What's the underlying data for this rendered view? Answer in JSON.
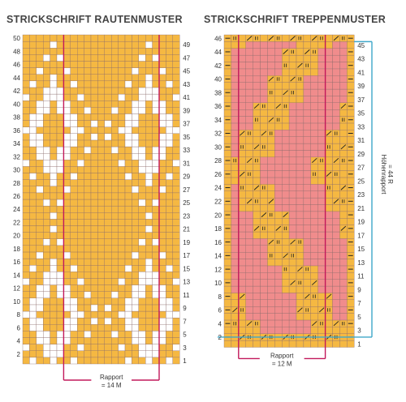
{
  "left_chart": {
    "title": "STRICKSCHRIFT RAUTENMUSTER",
    "rows": 50,
    "left_labels": [
      "2",
      "4",
      "6",
      "8",
      "10",
      "12",
      "14",
      "16",
      "18",
      "20",
      "22",
      "24",
      "26",
      "28",
      "30",
      "32",
      "34",
      "36",
      "38",
      "40",
      "42",
      "44",
      "46",
      "48",
      "50"
    ],
    "right_labels": [
      "1",
      "3",
      "5",
      "7",
      "9",
      "11",
      "13",
      "15",
      "17",
      "19",
      "21",
      "23",
      "25",
      "27",
      "29",
      "31",
      "33",
      "35",
      "37",
      "39",
      "41",
      "43",
      "45",
      "47",
      "49"
    ],
    "rapport_label_1": "Rapport",
    "rapport_label_2": "= 14 M"
  },
  "right_chart": {
    "title": "STRICKSCHRIFT TREPPENMUSTER",
    "rows": 46,
    "left_labels": [
      "2",
      "4",
      "6",
      "8",
      "10",
      "12",
      "14",
      "16",
      "18",
      "20",
      "22",
      "24",
      "26",
      "28",
      "30",
      "32",
      "34",
      "36",
      "38",
      "40",
      "42",
      "44",
      "46"
    ],
    "right_labels": [
      "1",
      "3",
      "5",
      "7",
      "9",
      "11",
      "13",
      "15",
      "17",
      "19",
      "21",
      "23",
      "25",
      "27",
      "29",
      "31",
      "33",
      "35",
      "37",
      "39",
      "41",
      "43",
      "45"
    ],
    "rapport_label_1": "Rapport",
    "rapport_label_2": "= 12 M",
    "height_rapport_label": "Höhenrapport",
    "height_rapport_value": "= 44 R"
  },
  "colors": {
    "yellow": "#F5B842",
    "pink": "#F08C8C",
    "grid_line": "#8a6a6a",
    "rapport_line": "#C2185B",
    "height_line": "#3FA7C9"
  }
}
